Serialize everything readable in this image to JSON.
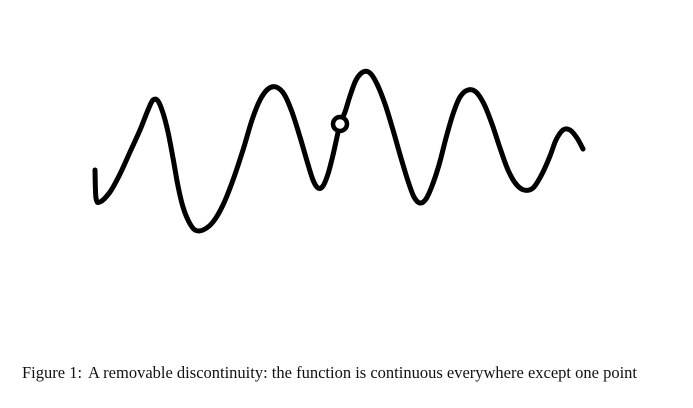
{
  "figure": {
    "label": "Figure 1:",
    "caption": "A removable discontinuity: the function is continuous everywhere except one point"
  },
  "style": {
    "curve_color": "#000000",
    "hole_fill": "#ffffff",
    "background": "#ffffff"
  },
  "chart_data": {
    "type": "line",
    "title": "",
    "xlabel": "",
    "ylabel": "",
    "grid": false,
    "axes_visible": false,
    "series": [
      {
        "points": [
          [
            95,
            170
          ],
          [
            96,
            198
          ],
          [
            100,
            202
          ],
          [
            110,
            192
          ],
          [
            120,
            174
          ],
          [
            130,
            152
          ],
          [
            140,
            130
          ],
          [
            148,
            110
          ],
          [
            153,
            100
          ],
          [
            158,
            101
          ],
          [
            163,
            113
          ],
          [
            168,
            132
          ],
          [
            173,
            158
          ],
          [
            178,
            186
          ],
          [
            183,
            207
          ],
          [
            189,
            222
          ],
          [
            195,
            230
          ],
          [
            203,
            230
          ],
          [
            213,
            222
          ],
          [
            223,
            205
          ],
          [
            233,
            180
          ],
          [
            243,
            150
          ],
          [
            252,
            120
          ],
          [
            260,
            100
          ],
          [
            268,
            89
          ],
          [
            276,
            87
          ],
          [
            284,
            94
          ],
          [
            292,
            112
          ],
          [
            300,
            137
          ],
          [
            307,
            161
          ],
          [
            313,
            180
          ],
          [
            318,
            188
          ],
          [
            323,
            186
          ],
          [
            328,
            174
          ],
          [
            333,
            155
          ],
          [
            337,
            137
          ],
          [
            340,
            124
          ],
          [
            345,
            112
          ],
          [
            350,
            96
          ],
          [
            356,
            80
          ],
          [
            363,
            72
          ],
          [
            370,
            73
          ],
          [
            377,
            84
          ],
          [
            385,
            104
          ],
          [
            393,
            130
          ],
          [
            401,
            158
          ],
          [
            408,
            181
          ],
          [
            414,
            197
          ],
          [
            420,
            203
          ],
          [
            426,
            199
          ],
          [
            432,
            186
          ],
          [
            439,
            165
          ],
          [
            446,
            138
          ],
          [
            453,
            114
          ],
          [
            460,
            97
          ],
          [
            468,
            90
          ],
          [
            476,
            92
          ],
          [
            484,
            104
          ],
          [
            492,
            124
          ],
          [
            500,
            148
          ],
          [
            508,
            170
          ],
          [
            516,
            184
          ],
          [
            524,
            190
          ],
          [
            533,
            188
          ],
          [
            542,
            174
          ],
          [
            550,
            156
          ],
          [
            556,
            140
          ],
          [
            563,
            130
          ],
          [
            570,
            130
          ],
          [
            577,
            138
          ],
          [
            583,
            149
          ]
        ]
      }
    ],
    "discontinuity": {
      "kind": "removable",
      "marker": "open-circle",
      "x": 340,
      "y": 124
    },
    "units": "image-plane units (no axes printed)"
  }
}
